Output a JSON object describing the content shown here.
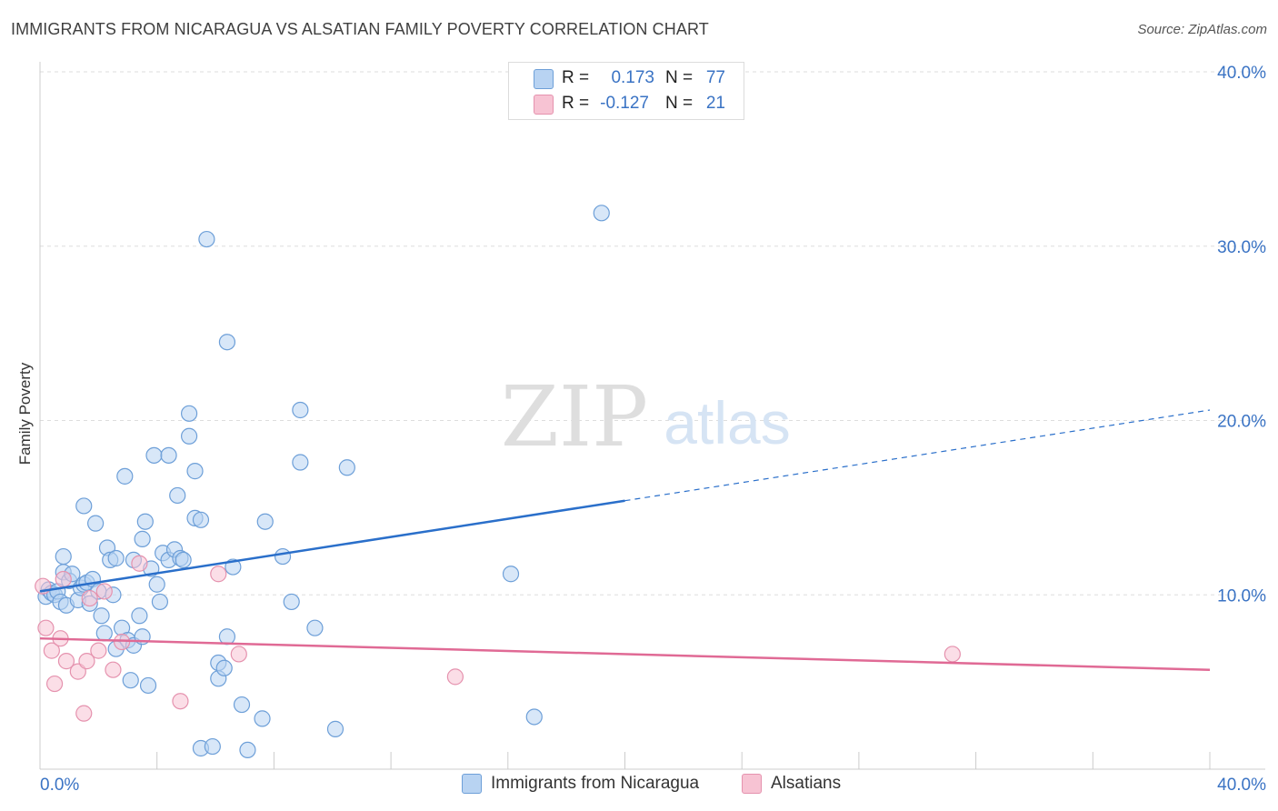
{
  "header": {
    "title": "IMMIGRANTS FROM NICARAGUA VS ALSATIAN FAMILY POVERTY CORRELATION CHART",
    "source": "Source: ZipAtlas.com"
  },
  "watermark": {
    "zip": "ZIP",
    "atlas": "atlas"
  },
  "colors": {
    "blue_fill": "#b8d3f2",
    "blue_stroke": "#6d9fd8",
    "blue_line": "#2a6fca",
    "pink_fill": "#f7c3d3",
    "pink_stroke": "#e592ae",
    "pink_line": "#e06a95",
    "axis_text": "#3a73c4",
    "grid": "#dddddd"
  },
  "legend_top": {
    "rows": [
      {
        "r_label": "R =",
        "r_value": "0.173",
        "n_label": "N =",
        "n_value": "77",
        "series": "blue"
      },
      {
        "r_label": "R =",
        "r_value": "-0.127",
        "n_label": "N =",
        "n_value": "21",
        "series": "pink"
      }
    ]
  },
  "legend_bottom": {
    "items": [
      {
        "label": "Immigrants from Nicaragua",
        "series": "blue"
      },
      {
        "label": "Alsatians",
        "series": "pink"
      }
    ]
  },
  "chart_data": {
    "type": "scatter",
    "title": "IMMIGRANTS FROM NICARAGUA VS ALSATIAN FAMILY POVERTY CORRELATION CHART",
    "xlabel": "",
    "ylabel": "Family Poverty",
    "xlim": [
      0,
      40
    ],
    "ylim": [
      0,
      40
    ],
    "x_tick_labels": [
      "0.0%",
      "40.0%"
    ],
    "y_ticks": [
      10,
      20,
      30,
      40
    ],
    "y_tick_labels": [
      "10.0%",
      "20.0%",
      "30.0%",
      "40.0%"
    ],
    "x_minor_ticks": [
      4,
      8,
      12,
      16,
      20,
      24,
      28,
      32,
      36,
      40
    ],
    "grid": true,
    "series": [
      {
        "name": "Immigrants from Nicaragua",
        "color": "blue",
        "r": 0.173,
        "n": 77,
        "trend": {
          "x0": 0,
          "y0": 10.2,
          "x_solid_end": 20,
          "y_solid_end": 15.4,
          "x1": 40,
          "y1": 20.6
        },
        "points": [
          [
            0.2,
            9.9
          ],
          [
            0.3,
            10.3
          ],
          [
            0.4,
            10.1
          ],
          [
            0.5,
            10.0
          ],
          [
            0.6,
            10.2
          ],
          [
            0.7,
            9.6
          ],
          [
            0.8,
            11.3
          ],
          [
            0.8,
            12.2
          ],
          [
            0.9,
            9.4
          ],
          [
            1.0,
            10.8
          ],
          [
            1.1,
            11.2
          ],
          [
            1.3,
            9.7
          ],
          [
            1.4,
            10.4
          ],
          [
            1.5,
            10.6
          ],
          [
            1.5,
            15.1
          ],
          [
            1.6,
            10.7
          ],
          [
            1.7,
            9.5
          ],
          [
            1.8,
            10.9
          ],
          [
            1.9,
            14.1
          ],
          [
            2.0,
            10.2
          ],
          [
            2.1,
            8.8
          ],
          [
            2.2,
            7.8
          ],
          [
            2.3,
            12.7
          ],
          [
            2.4,
            12.0
          ],
          [
            2.5,
            10.0
          ],
          [
            2.6,
            6.9
          ],
          [
            2.6,
            12.1
          ],
          [
            2.8,
            8.1
          ],
          [
            2.9,
            16.8
          ],
          [
            3.0,
            7.4
          ],
          [
            3.1,
            5.1
          ],
          [
            3.2,
            7.1
          ],
          [
            3.2,
            12.0
          ],
          [
            3.4,
            8.8
          ],
          [
            3.5,
            7.6
          ],
          [
            3.5,
            13.2
          ],
          [
            3.6,
            14.2
          ],
          [
            3.7,
            4.8
          ],
          [
            3.8,
            11.5
          ],
          [
            3.9,
            18.0
          ],
          [
            4.0,
            10.6
          ],
          [
            4.1,
            9.6
          ],
          [
            4.2,
            12.4
          ],
          [
            4.4,
            12.0
          ],
          [
            4.4,
            18.0
          ],
          [
            4.6,
            12.6
          ],
          [
            4.7,
            15.7
          ],
          [
            4.8,
            12.1
          ],
          [
            4.9,
            12.0
          ],
          [
            5.1,
            19.1
          ],
          [
            5.1,
            20.4
          ],
          [
            5.3,
            17.1
          ],
          [
            5.3,
            14.4
          ],
          [
            5.5,
            1.2
          ],
          [
            5.5,
            14.3
          ],
          [
            5.7,
            30.4
          ],
          [
            5.9,
            1.3
          ],
          [
            6.1,
            5.2
          ],
          [
            6.1,
            6.1
          ],
          [
            6.3,
            5.8
          ],
          [
            6.4,
            7.6
          ],
          [
            6.4,
            24.5
          ],
          [
            6.6,
            11.6
          ],
          [
            6.9,
            3.7
          ],
          [
            7.1,
            1.1
          ],
          [
            7.6,
            2.9
          ],
          [
            7.7,
            14.2
          ],
          [
            8.3,
            12.2
          ],
          [
            8.6,
            9.6
          ],
          [
            8.9,
            20.6
          ],
          [
            8.9,
            17.6
          ],
          [
            9.4,
            8.1
          ],
          [
            10.1,
            2.3
          ],
          [
            10.5,
            17.3
          ],
          [
            16.1,
            11.2
          ],
          [
            16.9,
            3.0
          ],
          [
            19.2,
            31.9
          ]
        ]
      },
      {
        "name": "Alsatians",
        "color": "pink",
        "r": -0.127,
        "n": 21,
        "trend": {
          "x0": 0,
          "y0": 7.5,
          "x1": 40,
          "y1": 5.7
        },
        "points": [
          [
            0.1,
            10.5
          ],
          [
            0.2,
            8.1
          ],
          [
            0.4,
            6.8
          ],
          [
            0.5,
            4.9
          ],
          [
            0.7,
            7.5
          ],
          [
            0.8,
            10.9
          ],
          [
            0.9,
            6.2
          ],
          [
            1.3,
            5.6
          ],
          [
            1.5,
            3.2
          ],
          [
            1.6,
            6.2
          ],
          [
            1.7,
            9.8
          ],
          [
            2.0,
            6.8
          ],
          [
            2.2,
            10.2
          ],
          [
            2.5,
            5.7
          ],
          [
            2.8,
            7.3
          ],
          [
            3.4,
            11.8
          ],
          [
            4.8,
            3.9
          ],
          [
            6.1,
            11.2
          ],
          [
            6.8,
            6.6
          ],
          [
            14.2,
            5.3
          ],
          [
            31.2,
            6.6
          ]
        ]
      }
    ]
  }
}
